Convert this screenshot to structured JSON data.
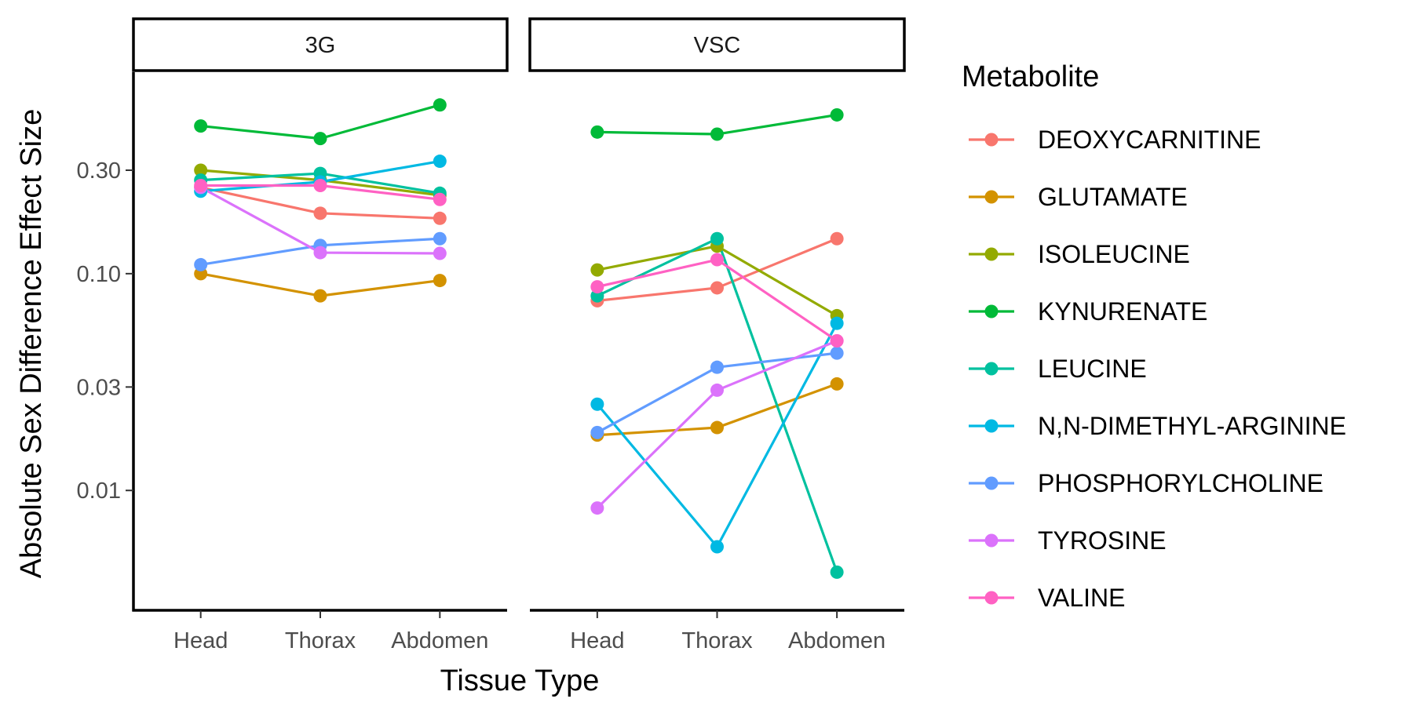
{
  "chart_data": {
    "type": "line",
    "xlabel": "Tissue Type",
    "ylabel": "Absolute Sex Difference Effect Size",
    "y_scale": "log10",
    "ylim": [
      0.0028,
      0.85
    ],
    "y_ticks": [
      0.01,
      0.03,
      0.1,
      0.3
    ],
    "y_tick_labels": [
      "0.01",
      "0.03",
      "0.10",
      "0.30"
    ],
    "categories": [
      "Head",
      "Thorax",
      "Abdomen"
    ],
    "grid": false,
    "legend": {
      "title": "Metabolite",
      "position": "right"
    },
    "panels": [
      {
        "label": "3G",
        "series": [
          {
            "name": "DEOXYCARNITINE",
            "color": "#F8766D",
            "values": [
              0.25,
              0.19,
              0.18
            ]
          },
          {
            "name": "GLUTAMATE",
            "color": "#D39200",
            "values": [
              0.1,
              0.079,
              0.093
            ]
          },
          {
            "name": "ISOLEUCINE",
            "color": "#93AA00",
            "values": [
              0.3,
              0.27,
              0.23
            ]
          },
          {
            "name": "KYNURENATE",
            "color": "#00BA38",
            "values": [
              0.48,
              0.42,
              0.6
            ]
          },
          {
            "name": "LEUCINE",
            "color": "#00C19F",
            "values": [
              0.27,
              0.29,
              0.235
            ]
          },
          {
            "name": "N,N-DIMETHYL-ARGININE",
            "color": "#00B9E3",
            "values": [
              0.24,
              0.265,
              0.33
            ]
          },
          {
            "name": "PHOSPHORYLCHOLINE",
            "color": "#619CFF",
            "values": [
              0.11,
              0.135,
              0.145
            ]
          },
          {
            "name": "TYROSINE",
            "color": "#DB72FB",
            "values": [
              0.25,
              0.125,
              0.124
            ]
          },
          {
            "name": "VALINE",
            "color": "#FF61C3",
            "values": [
              0.255,
              0.255,
              0.22
            ]
          }
        ]
      },
      {
        "label": "VSC",
        "series": [
          {
            "name": "DEOXYCARNITINE",
            "color": "#F8766D",
            "values": [
              0.075,
              0.086,
              0.145
            ]
          },
          {
            "name": "GLUTAMATE",
            "color": "#D39200",
            "values": [
              0.018,
              0.0195,
              0.031
            ]
          },
          {
            "name": "ISOLEUCINE",
            "color": "#93AA00",
            "values": [
              0.104,
              0.134,
              0.064
            ]
          },
          {
            "name": "KYNURENATE",
            "color": "#00BA38",
            "values": [
              0.45,
              0.44,
              0.54
            ]
          },
          {
            "name": "LEUCINE",
            "color": "#00C19F",
            "values": [
              0.079,
              0.145,
              0.0042
            ]
          },
          {
            "name": "N,N-DIMETHYL-ARGININE",
            "color": "#00B9E3",
            "values": [
              0.025,
              0.0055,
              0.059
            ]
          },
          {
            "name": "PHOSPHORYLCHOLINE",
            "color": "#619CFF",
            "values": [
              0.0185,
              0.037,
              0.043
            ]
          },
          {
            "name": "TYROSINE",
            "color": "#DB72FB",
            "values": [
              0.0083,
              0.029,
              0.049
            ]
          },
          {
            "name": "VALINE",
            "color": "#FF61C3",
            "values": [
              0.087,
              0.116,
              0.049
            ]
          }
        ]
      }
    ]
  }
}
